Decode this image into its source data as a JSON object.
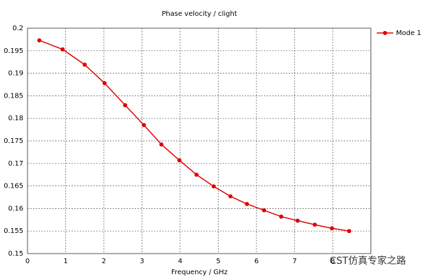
{
  "chart_data": {
    "type": "line",
    "title": "Phase velocity / clight",
    "xlabel": "Frequency / GHz",
    "x": [
      0.31,
      0.92,
      1.5,
      2.02,
      2.56,
      3.05,
      3.51,
      3.98,
      4.43,
      4.88,
      5.32,
      5.75,
      6.2,
      6.65,
      7.08,
      7.53,
      7.98,
      8.43
    ],
    "series": [
      {
        "name": "Mode 1",
        "color": "#e00000",
        "values": [
          0.1973,
          0.1953,
          0.1919,
          0.1878,
          0.1829,
          0.1785,
          0.1742,
          0.1707,
          0.1675,
          0.1649,
          0.1627,
          0.161,
          0.1596,
          0.1582,
          0.1573,
          0.1564,
          0.1556,
          0.155
        ]
      }
    ],
    "xlim": [
      0,
      9
    ],
    "ylim": [
      0.15,
      0.2
    ],
    "xticks": [
      0,
      1,
      2,
      3,
      4,
      5,
      6,
      7,
      8
    ],
    "yticks": [
      0.15,
      0.155,
      0.16,
      0.165,
      0.17,
      0.175,
      0.18,
      0.185,
      0.19,
      0.195,
      0.2
    ],
    "grid": true,
    "legend": "top-right"
  },
  "watermark": "CST仿真专家之路"
}
